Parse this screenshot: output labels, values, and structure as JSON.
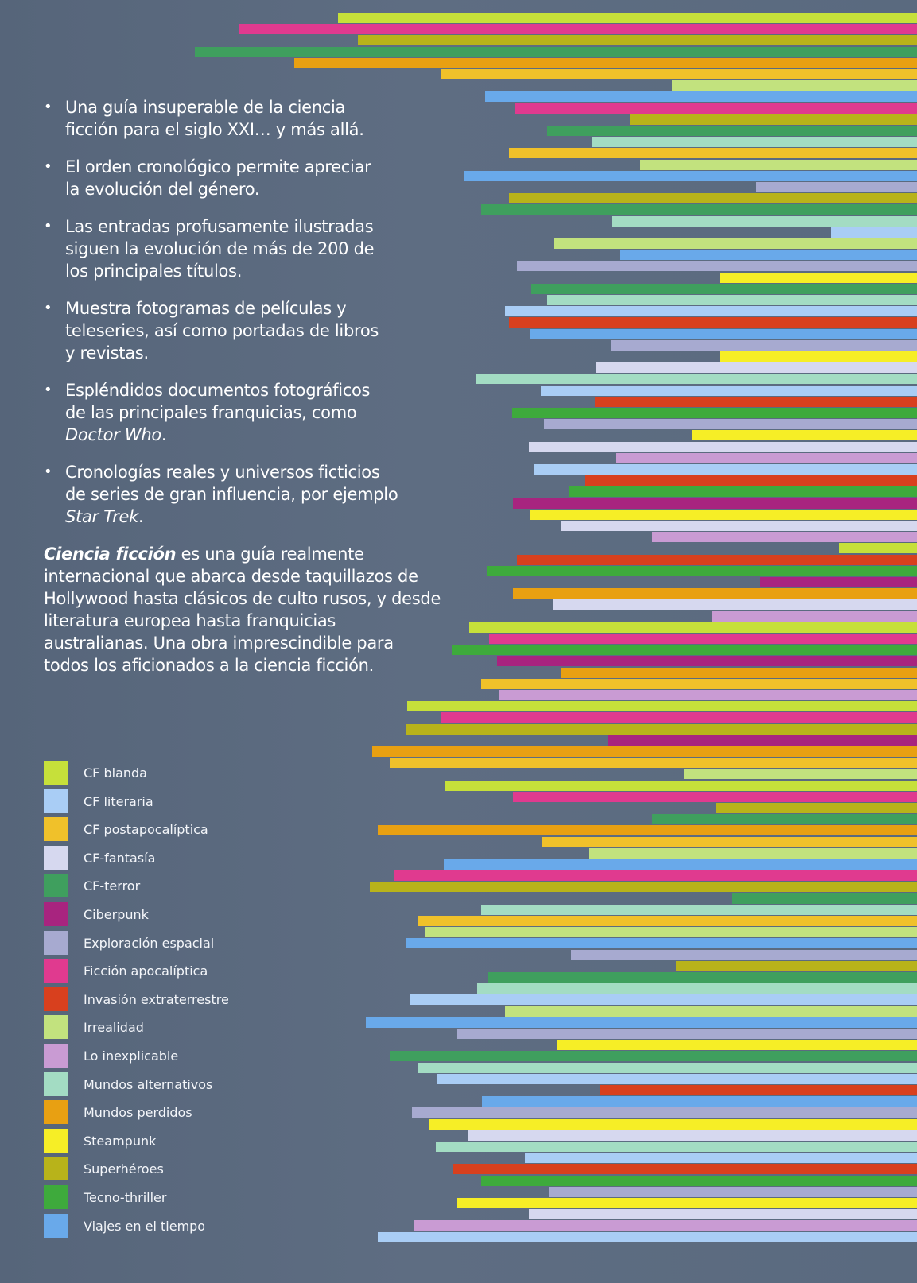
{
  "bullets": [
    {
      "parts": [
        "Una guía insuperable de la ciencia",
        "ficción para el siglo XXI… y más allá."
      ]
    },
    {
      "parts": [
        "El orden cronológico permite apreciar",
        "la evolución del género."
      ]
    },
    {
      "parts": [
        "Las entradas profusamente ilustradas",
        "siguen la evolución de más de 200 de",
        "los principales títulos."
      ]
    },
    {
      "parts": [
        "Muestra fotogramas de películas y",
        "teleseries, así como portadas de libros",
        "y revistas."
      ]
    },
    {
      "parts": [
        "Espléndidos documentos fotográficos",
        "de las principales franquicias, como"
      ],
      "italic": "Doctor Who",
      "tail": "."
    },
    {
      "parts": [
        "Cronologías reales y universos ficticios",
        "de series de gran influencia, por ejemplo"
      ],
      "italic": "Star Trek",
      "tail": "."
    }
  ],
  "paragraph": {
    "bold_italic": "Ciencia ficción",
    "text": " es una guía realmente internacional que abarca desde taquillazos de Hollywood hasta clásicos de culto rusos, y desde literatura europea hasta franquicias australianas. Una obra imprescindible para todos los aficionados a la ciencia ficción."
  },
  "legend": [
    {
      "label": "CF blanda",
      "color": "#c6e03a"
    },
    {
      "label": "CF literaria",
      "color": "#a9cdf5"
    },
    {
      "label": "CF postapocalíptica",
      "color": "#f0c12a"
    },
    {
      "label": "CF-fantasía",
      "color": "#d6d8ef"
    },
    {
      "label": "CF-terror",
      "color": "#3f9f5e"
    },
    {
      "label": "Ciberpunk",
      "color": "#a8247f"
    },
    {
      "label": "Exploración espacial",
      "color": "#a7aad0"
    },
    {
      "label": "Ficción apocalíptica",
      "color": "#e03a8f"
    },
    {
      "label": "Invasión extraterrestre",
      "color": "#d8401e"
    },
    {
      "label": "Irrealidad",
      "color": "#c2e27e"
    },
    {
      "label": "Lo inexplicable",
      "color": "#c99bd3"
    },
    {
      "label": "Mundos alternativos",
      "color": "#a3dcc3"
    },
    {
      "label": "Mundos perdidos",
      "color": "#e8a012"
    },
    {
      "label": "Steampunk",
      "color": "#f6ee26"
    },
    {
      "label": "Superhéroes",
      "color": "#b8b31a"
    },
    {
      "label": "Tecno-thriller",
      "color": "#3eaa3c"
    },
    {
      "label": "Viajes en el tiempo",
      "color": "#69a9ea"
    }
  ]
}
